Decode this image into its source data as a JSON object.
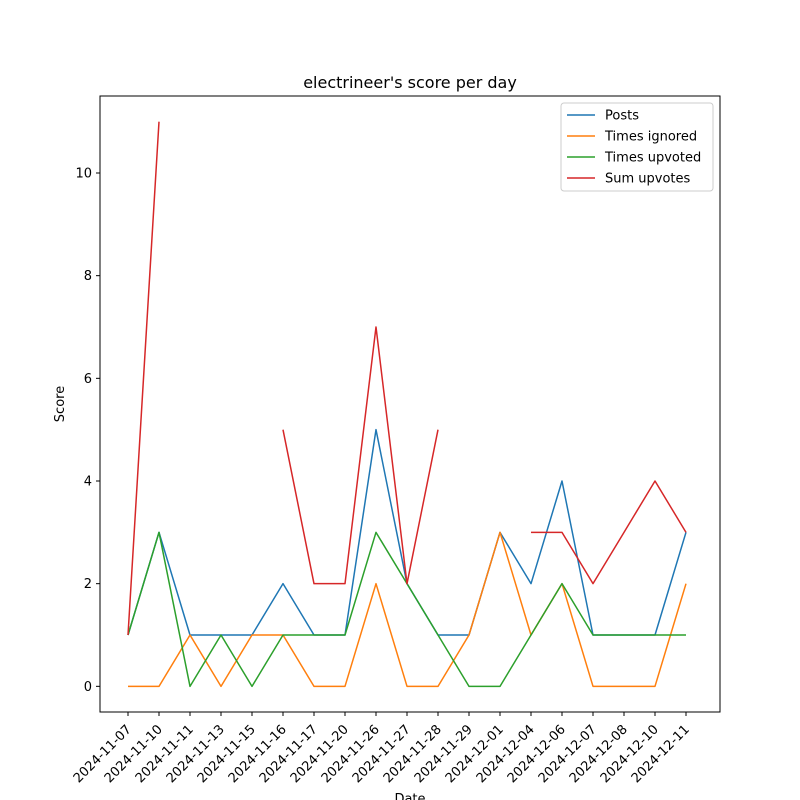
{
  "chart_data": {
    "type": "line",
    "title": "electrineer's score per day",
    "xlabel": "Date",
    "ylabel": "Score",
    "categories": [
      "2024-11-07",
      "2024-11-10",
      "2024-11-11",
      "2024-11-13",
      "2024-11-15",
      "2024-11-16",
      "2024-11-17",
      "2024-11-20",
      "2024-11-26",
      "2024-11-27",
      "2024-11-28",
      "2024-11-29",
      "2024-12-01",
      "2024-12-04",
      "2024-12-06",
      "2024-12-07",
      "2024-12-08",
      "2024-12-10",
      "2024-12-11"
    ],
    "ylim": [
      -0.5,
      11.5
    ],
    "yticks": [
      0,
      2,
      4,
      6,
      8,
      10
    ],
    "grid": false,
    "legend_position": "top-right",
    "series": [
      {
        "name": "Posts",
        "color": "#1f77b4",
        "values": [
          1,
          3,
          1,
          1,
          1,
          2,
          1,
          1,
          5,
          2,
          1,
          1,
          3,
          2,
          4,
          1,
          1,
          1,
          3
        ]
      },
      {
        "name": "Times ignored",
        "color": "#ff7f0e",
        "values": [
          0,
          0,
          1,
          0,
          1,
          1,
          0,
          0,
          2,
          0,
          0,
          1,
          3,
          1,
          2,
          0,
          0,
          0,
          2
        ]
      },
      {
        "name": "Times upvoted",
        "color": "#2ca02c",
        "values": [
          1,
          3,
          0,
          1,
          0,
          1,
          1,
          1,
          3,
          2,
          1,
          0,
          0,
          1,
          2,
          1,
          1,
          1,
          1
        ]
      },
      {
        "name": "Sum upvotes",
        "color": "#d62728",
        "values": [
          1,
          11,
          null,
          null,
          null,
          5,
          2,
          2,
          7,
          2,
          5,
          null,
          null,
          3,
          3,
          2,
          3,
          4,
          3
        ]
      }
    ]
  }
}
